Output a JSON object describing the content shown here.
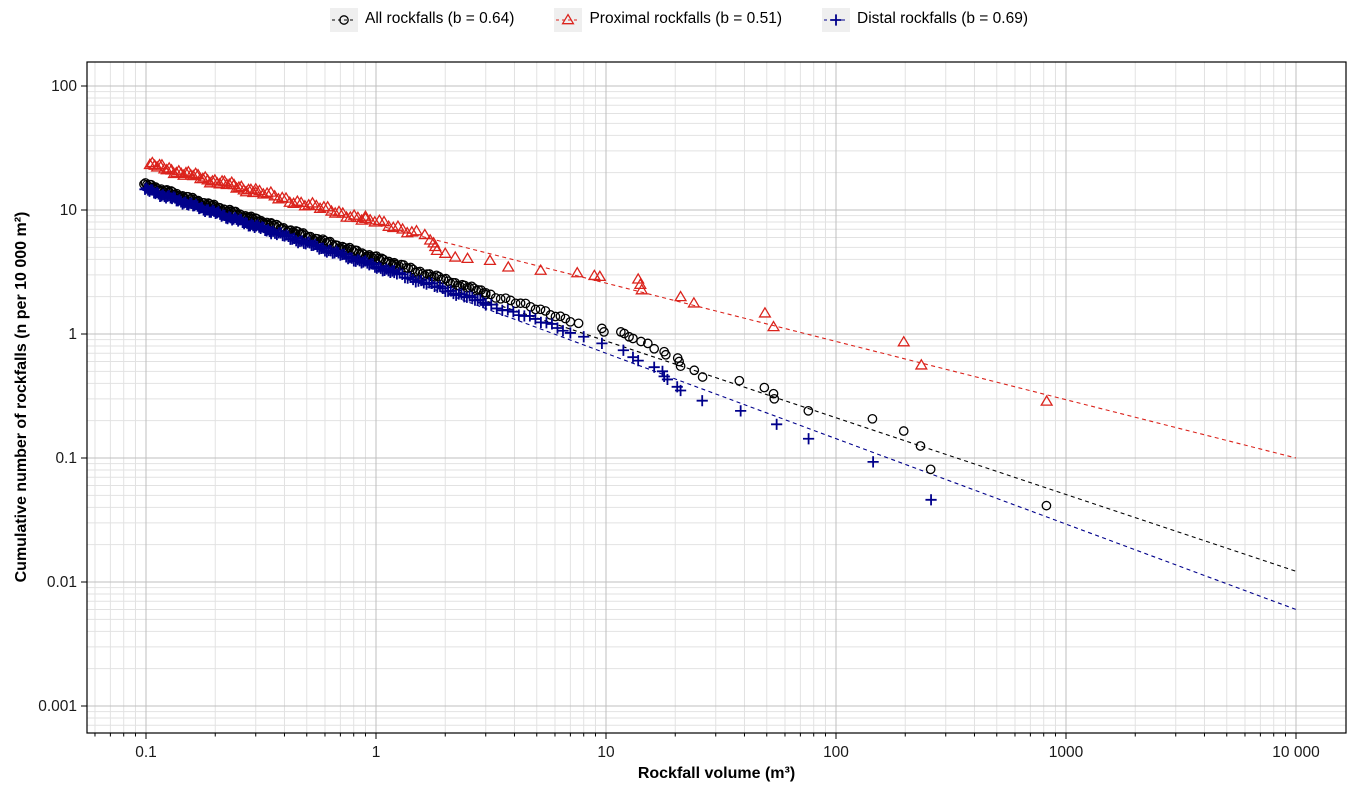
{
  "legend": {
    "items": [
      {
        "label": "All rockfalls (b = 0.64)",
        "marker": "circle",
        "color": "#000000"
      },
      {
        "label": "Proximal rockfalls (b = 0.51)",
        "marker": "triangle",
        "color": "#DB231C"
      },
      {
        "label": "Distal rockfalls (b = 0.69)",
        "marker": "plus",
        "color": "#00008B"
      }
    ]
  },
  "axes": {
    "x": {
      "label": "Rockfall volume (m³)",
      "scale": "log",
      "tick_labels": [
        "0.1",
        "1",
        "10",
        "100",
        "1000",
        "10 000"
      ],
      "tick_values": [
        0.1,
        1,
        10,
        100,
        1000,
        10000
      ]
    },
    "y": {
      "label": "Cumulative number of rockfalls (n per 10 000 m²)",
      "scale": "log",
      "tick_labels": [
        "100",
        "10",
        "1",
        "0.1",
        "0.01",
        "0.001"
      ],
      "tick_values": [
        100,
        10,
        1,
        0.1,
        0.01,
        0.001
      ]
    }
  },
  "chart_data": {
    "type": "scatter",
    "title": "",
    "xlabel": "Rockfall volume (m³)",
    "ylabel": "Cumulative number of rockfalls (n per 10 000 m²)",
    "x_scale": "log",
    "y_scale": "log",
    "x_range": [
      0.055,
      16500
    ],
    "y_range": [
      0.00063,
      156
    ],
    "grid": "major+minor-log",
    "legend_position": "top",
    "series": [
      {
        "name": "All rockfalls",
        "b_value": 0.64,
        "marker": "circle",
        "color": "#000000",
        "fit_line": {
          "from": [
            0.1,
            15.2
          ],
          "to": [
            10000,
            0.0122
          ]
        },
        "dense": {
          "a": 4.1,
          "b": 0.59,
          "wiggle": 0.011,
          "segments": [
            {
              "v_from": 0.098,
              "v_to": 0.35,
              "count": 90
            },
            {
              "v_from": 0.35,
              "v_to": 1.2,
              "count": 70
            },
            {
              "v_from": 1.2,
              "v_to": 3.0,
              "count": 40
            },
            {
              "v_from": 3.0,
              "v_to": 7.0,
              "count": 18
            }
          ]
        },
        "points": [
          [
            7.6,
            1.22
          ],
          [
            9.6,
            1.11
          ],
          [
            9.8,
            1.04
          ],
          [
            11.6,
            1.04
          ],
          [
            12.0,
            1.01
          ],
          [
            12.6,
            0.95
          ],
          [
            13.1,
            0.92
          ],
          [
            14.2,
            0.87
          ],
          [
            15.2,
            0.84
          ],
          [
            16.2,
            0.76
          ],
          [
            17.9,
            0.72
          ],
          [
            18.2,
            0.68
          ],
          [
            20.5,
            0.64
          ],
          [
            20.8,
            0.6
          ],
          [
            21.1,
            0.55
          ],
          [
            24.2,
            0.51
          ],
          [
            26.3,
            0.45
          ],
          [
            38.0,
            0.42
          ],
          [
            48.8,
            0.37
          ],
          [
            53.5,
            0.33
          ],
          [
            53.9,
            0.3
          ],
          [
            75.8,
            0.24
          ],
          [
            144,
            0.207
          ],
          [
            197,
            0.165
          ],
          [
            233,
            0.125
          ],
          [
            258,
            0.081
          ],
          [
            822,
            0.0413
          ]
        ]
      },
      {
        "name": "Proximal rockfalls",
        "b_value": 0.51,
        "marker": "triangle",
        "color": "#DB231C",
        "fit_line": {
          "from": [
            0.1,
            22.4
          ],
          "to": [
            10000,
            0.1
          ]
        },
        "dense": {
          "a": 8.0,
          "b": 0.47,
          "wiggle": 0.016,
          "segments": [
            {
              "v_from": 0.104,
              "v_to": 0.3,
              "count": 45
            },
            {
              "v_from": 0.3,
              "v_to": 0.9,
              "count": 30
            },
            {
              "v_from": 0.9,
              "v_to": 1.5,
              "count": 12
            }
          ]
        },
        "points": [
          [
            1.63,
            6.3
          ],
          [
            1.72,
            5.7
          ],
          [
            1.78,
            5.4
          ],
          [
            1.81,
            5.05
          ],
          [
            1.84,
            4.7
          ],
          [
            2.0,
            4.45
          ],
          [
            2.21,
            4.15
          ],
          [
            2.5,
            4.05
          ],
          [
            3.13,
            3.9
          ],
          [
            3.76,
            3.45
          ],
          [
            5.2,
            3.25
          ],
          [
            7.5,
            3.1
          ],
          [
            8.9,
            2.95
          ],
          [
            9.4,
            2.9
          ],
          [
            13.8,
            2.76
          ],
          [
            14.1,
            2.5
          ],
          [
            14.3,
            2.26
          ],
          [
            21.1,
            1.99
          ],
          [
            24.1,
            1.77
          ],
          [
            49.1,
            1.47
          ],
          [
            53.5,
            1.14
          ],
          [
            197,
            0.86
          ],
          [
            235,
            0.56
          ],
          [
            824,
            0.286
          ]
        ]
      },
      {
        "name": "Distal rockfalls",
        "b_value": 0.69,
        "marker": "plus",
        "color": "#00008B",
        "fit_line": {
          "from": [
            0.1,
            16.7
          ],
          "to": [
            10000,
            0.006
          ]
        },
        "dense": {
          "a": 3.5,
          "b": 0.62,
          "wiggle": 0.011,
          "segments": [
            {
              "v_from": 0.099,
              "v_to": 0.35,
              "count": 85
            },
            {
              "v_from": 0.35,
              "v_to": 1.2,
              "count": 65
            },
            {
              "v_from": 1.2,
              "v_to": 3.0,
              "count": 35
            },
            {
              "v_from": 3.0,
              "v_to": 6.5,
              "count": 15
            }
          ]
        },
        "points": [
          [
            7.0,
            1.02
          ],
          [
            8.0,
            0.95
          ],
          [
            9.6,
            0.84
          ],
          [
            11.9,
            0.74
          ],
          [
            13.1,
            0.65
          ],
          [
            13.8,
            0.61
          ],
          [
            16.2,
            0.54
          ],
          [
            17.6,
            0.5
          ],
          [
            17.9,
            0.455
          ],
          [
            18.5,
            0.43
          ],
          [
            20.4,
            0.375
          ],
          [
            21.1,
            0.35
          ],
          [
            26.2,
            0.29
          ],
          [
            38.5,
            0.24
          ],
          [
            55.2,
            0.187
          ],
          [
            76,
            0.143
          ],
          [
            145,
            0.093
          ],
          [
            259,
            0.046
          ]
        ]
      }
    ]
  },
  "colors": {
    "background": "#FFFFFF",
    "panel_border": "#000000",
    "grid_major": "#BFBFBF",
    "grid_minor": "#E2E2E2",
    "tick_text": "#1A1A1A",
    "legend_key_bg": "#EFEFEF"
  }
}
